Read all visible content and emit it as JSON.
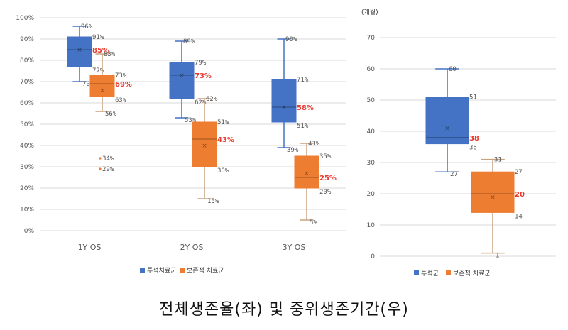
{
  "caption": "전체생존율(좌) 및 중위생존기간(우)",
  "colors": {
    "dialysis": "#4472C4",
    "conservative": "#ED7D31",
    "whisker_dialysis": "#4472C4",
    "whisker_conservative": "#C9A27E",
    "median_label": "#E8392F",
    "grid": "#D9D9D9"
  },
  "chart_data": [
    {
      "type": "box",
      "title": "",
      "ylim": [
        0,
        100
      ],
      "y_ticks": [
        "0%",
        "10%",
        "20%",
        "30%",
        "40%",
        "50%",
        "60%",
        "70%",
        "80%",
        "90%",
        "100%"
      ],
      "categories": [
        "1Y OS",
        "2Y OS",
        "3Y OS"
      ],
      "grid": true,
      "legend_position": "bottom",
      "series": [
        {
          "name": "투석치료군",
          "boxes": [
            {
              "min": 70,
              "q1": 77,
              "median": 85,
              "q3": 91,
              "max": 96,
              "mean": 85,
              "labels": {
                "max": "96%",
                "q3": "91%",
                "median": "85%",
                "q1": "77%",
                "min": "70%"
              }
            },
            {
              "min": 53,
              "q1": 62,
              "median": 73,
              "q3": 79,
              "max": 89,
              "mean": 73,
              "labels": {
                "max": "89%",
                "q3": "79%",
                "median": "73%",
                "q1": "62%",
                "min": "53%"
              }
            },
            {
              "min": 39,
              "q1": 51,
              "median": 58,
              "q3": 71,
              "max": 90,
              "mean": 58,
              "labels": {
                "max": "90%",
                "q3": "71%",
                "median": "58%",
                "q1": "51%",
                "min": "39%"
              }
            }
          ]
        },
        {
          "name": "보존적 치료군",
          "boxes": [
            {
              "min": 56,
              "q1": 63,
              "median": 69,
              "q3": 73,
              "max": 83,
              "mean": 66,
              "outliers": [
                34,
                29
              ],
              "labels": {
                "max": "83%",
                "q3": "73%",
                "median": "69%",
                "q1": "63%",
                "min": "56%",
                "outliers": [
                  "34%",
                  "29%"
                ]
              }
            },
            {
              "min": 15,
              "q1": 30,
              "median": 43,
              "q3": 51,
              "max": 62,
              "mean": 40,
              "labels": {
                "max": "62%",
                "q3": "51%",
                "median": "43%",
                "q1": "30%",
                "min": "15%"
              }
            },
            {
              "min": 5,
              "q1": 20,
              "median": 25,
              "q3": 35,
              "max": 41,
              "mean": 27,
              "labels": {
                "max": "41%",
                "q3": "35%",
                "median": "25%",
                "q1": "20%",
                "min": "5%"
              }
            }
          ]
        }
      ]
    },
    {
      "type": "box",
      "title": "",
      "ylabel": "(개월)",
      "ylim": [
        0,
        70
      ],
      "y_ticks": [
        "0",
        "10",
        "20",
        "30",
        "40",
        "50",
        "60",
        "70"
      ],
      "grid": true,
      "legend_position": "bottom",
      "series": [
        {
          "name": "투석군",
          "box": {
            "min": 27,
            "q1": 36,
            "median": 38,
            "q3": 51,
            "max": 60,
            "mean": 41,
            "labels": {
              "max": "60",
              "q3": "51",
              "median": "38",
              "q1": "36",
              "min": "27"
            }
          }
        },
        {
          "name": "보존적 치료군",
          "box": {
            "min": 1,
            "q1": 14,
            "median": 20,
            "q3": 27,
            "max": 31,
            "mean": 19,
            "labels": {
              "max": "31",
              "q3": "27",
              "median": "20",
              "q1": "14",
              "min": "1"
            }
          }
        }
      ]
    }
  ]
}
